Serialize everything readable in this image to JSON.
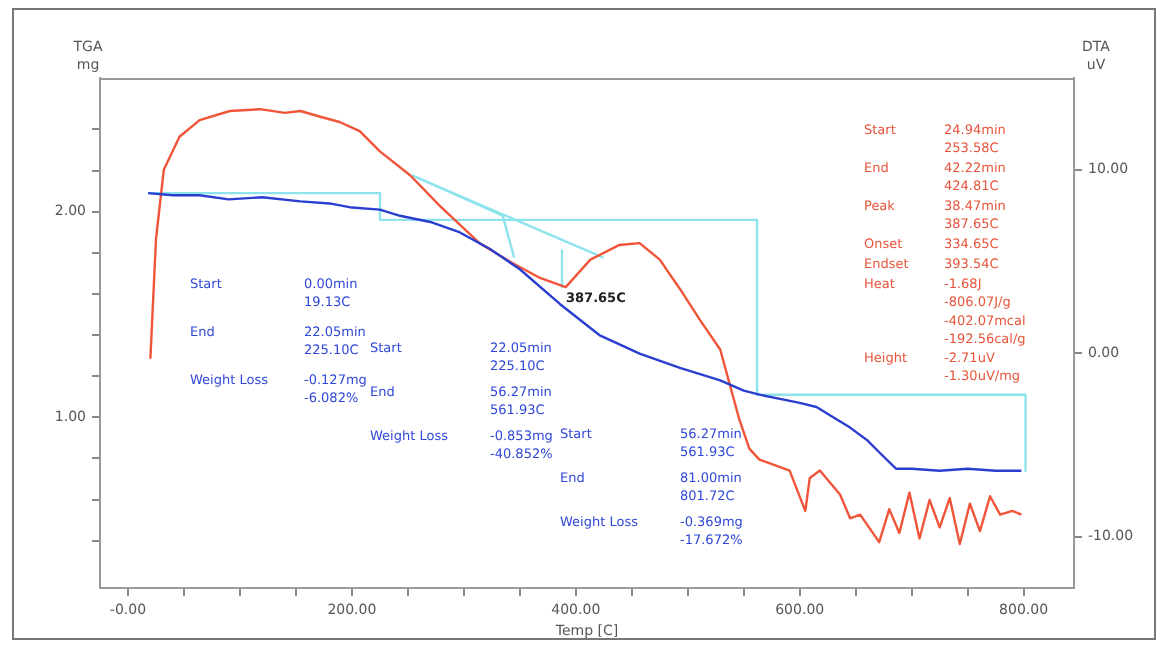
{
  "chart_data": {
    "type": "line",
    "xlabel": "Temp [C]",
    "ylabel": "TGA mg",
    "y2label": "DTA uV",
    "xlim": [
      -25,
      845
    ],
    "ylim": [
      0.17,
      2.65
    ],
    "y2lim": [
      -12.8,
      15
    ],
    "xticks": [
      {
        "value": 0,
        "label": "-0.00"
      },
      {
        "value": 50,
        "label": null
      },
      {
        "value": 100,
        "label": null
      },
      {
        "value": 150,
        "label": null
      },
      {
        "value": 200,
        "label": "200.00"
      },
      {
        "value": 250,
        "label": null
      },
      {
        "value": 300,
        "label": null
      },
      {
        "value": 350,
        "label": null
      },
      {
        "value": 400,
        "label": "400.00"
      },
      {
        "value": 450,
        "label": null
      },
      {
        "value": 500,
        "label": null
      },
      {
        "value": 550,
        "label": null
      },
      {
        "value": 600,
        "label": "600.00"
      },
      {
        "value": 650,
        "label": null
      },
      {
        "value": 700,
        "label": null
      },
      {
        "value": 750,
        "label": null
      },
      {
        "value": 800,
        "label": "800.00"
      }
    ],
    "yticks": [
      {
        "value": 0.4,
        "label": null
      },
      {
        "value": 0.6,
        "label": null
      },
      {
        "value": 0.8,
        "label": null
      },
      {
        "value": 1,
        "label": "1.00"
      },
      {
        "value": 1.2,
        "label": null
      },
      {
        "value": 1.4,
        "label": null
      },
      {
        "value": 1.6,
        "label": null
      },
      {
        "value": 1.8,
        "label": null
      },
      {
        "value": 2,
        "label": "2.00"
      },
      {
        "value": 2.2,
        "label": null
      },
      {
        "value": 2.4,
        "label": null
      }
    ],
    "y2ticks": [
      {
        "value": -10,
        "label": "-10.00"
      },
      {
        "value": 0,
        "label": "0.00"
      },
      {
        "value": 10,
        "label": "10.00"
      }
    ],
    "grid": false,
    "marker": "none",
    "line_style": "solid",
    "series": [
      {
        "color": "#2a3fd0",
        "x": [
          18,
          40,
          64,
          90,
          120,
          154,
          180,
          200,
          225,
          243,
          270,
          296,
          323,
          350,
          386,
          421,
          457,
          493,
          529,
          550,
          564,
          600,
          615,
          627,
          645,
          660,
          671,
          686,
          700,
          725,
          750,
          775,
          798
        ],
        "values": [
          2.09,
          2.08,
          2.08,
          2.06,
          2.07,
          2.05,
          2.04,
          2.02,
          2.01,
          1.98,
          1.95,
          1.9,
          1.82,
          1.72,
          1.55,
          1.4,
          1.31,
          1.24,
          1.18,
          1.13,
          1.11,
          1.07,
          1.05,
          1.01,
          0.95,
          0.89,
          0.83,
          0.75,
          0.75,
          0.74,
          0.75,
          0.74,
          0.74
        ]
      },
      {
        "color": "#f0553a",
        "axis": "y2",
        "x": [
          20,
          25,
          32,
          46,
          64,
          91,
          118,
          140,
          154,
          171,
          189,
          207,
          225,
          252,
          279,
          314,
          341,
          368,
          391,
          413,
          439,
          457,
          475,
          493,
          511,
          529,
          546,
          555,
          564,
          591,
          605,
          609,
          618,
          636,
          645,
          654,
          671,
          680,
          689,
          698,
          707,
          716,
          725,
          734,
          743,
          752,
          761,
          770,
          779,
          790,
          798
        ],
        "values": [
          -0.3,
          6.2,
          10,
          11.8,
          12.7,
          13.2,
          13.3,
          13.1,
          13.2,
          12.9,
          12.6,
          12.1,
          11,
          9.7,
          8,
          6,
          5,
          4.1,
          3.6,
          5.1,
          5.9,
          6,
          5.1,
          3.5,
          1.8,
          0.2,
          -3.6,
          -5.2,
          -5.8,
          -6.4,
          -8.6,
          -6.8,
          -6.4,
          -7.7,
          -9,
          -8.8,
          -10.3,
          -8.5,
          -9.8,
          -7.6,
          -10.1,
          -8,
          -9.5,
          -7.9,
          -10.4,
          -8.2,
          -9.7,
          -7.8,
          -8.8,
          -8.6,
          -8.8
        ]
      },
      {
        "color": "#8fe3ec",
        "x": [
          18,
          225.1,
          225.1,
          561.93,
          561.93,
          801.72,
          801.72
        ],
        "values": [
          2.09,
          2.09,
          1.96,
          1.96,
          1.11,
          1.11,
          0.74
        ]
      },
      {
        "color": "#8fe3ec",
        "axis": "y2",
        "x": [
          253.58,
          424.81
        ],
        "values": [
          9.7,
          5.2
        ]
      },
      {
        "color": "#8fe3ec",
        "axis": "y2",
        "x": [
          253.58,
          334.65,
          345
        ],
        "values": [
          9.7,
          7.5,
          5.2
        ]
      },
      {
        "color": "#8fe3ec",
        "axis": "y2",
        "x": [
          387.65,
          387.65
        ],
        "values": [
          5.6,
          3.6
        ]
      }
    ],
    "annotations": [
      "Start",
      "0.00min\n19.13C",
      "End",
      "22.05min\n225.10C",
      "Weight Loss",
      "-0.127mg\n-6.082%",
      "Start",
      "22.05min\n225.10C",
      "End",
      "56.27min\n561.93C",
      "Weight Loss",
      "-0.853mg\n-40.852%",
      "Start",
      "56.27min\n561.93C",
      "End",
      "81.00min\n801.72C",
      "Weight Loss",
      "-0.369mg\n-17.672%",
      "Start",
      "24.94min\n253.58C",
      "End",
      "42.22min\n424.81C",
      "Peak",
      "38.47min\n387.65C",
      "Onset",
      "334.65C",
      "Endset",
      "393.54C",
      "Heat",
      "-1.68J\n-806.07J/g\n-402.07mcal\n-192.56cal/g",
      "Height",
      "-2.71uV\n-1.30uV/mg",
      "387.65C"
    ]
  }
}
